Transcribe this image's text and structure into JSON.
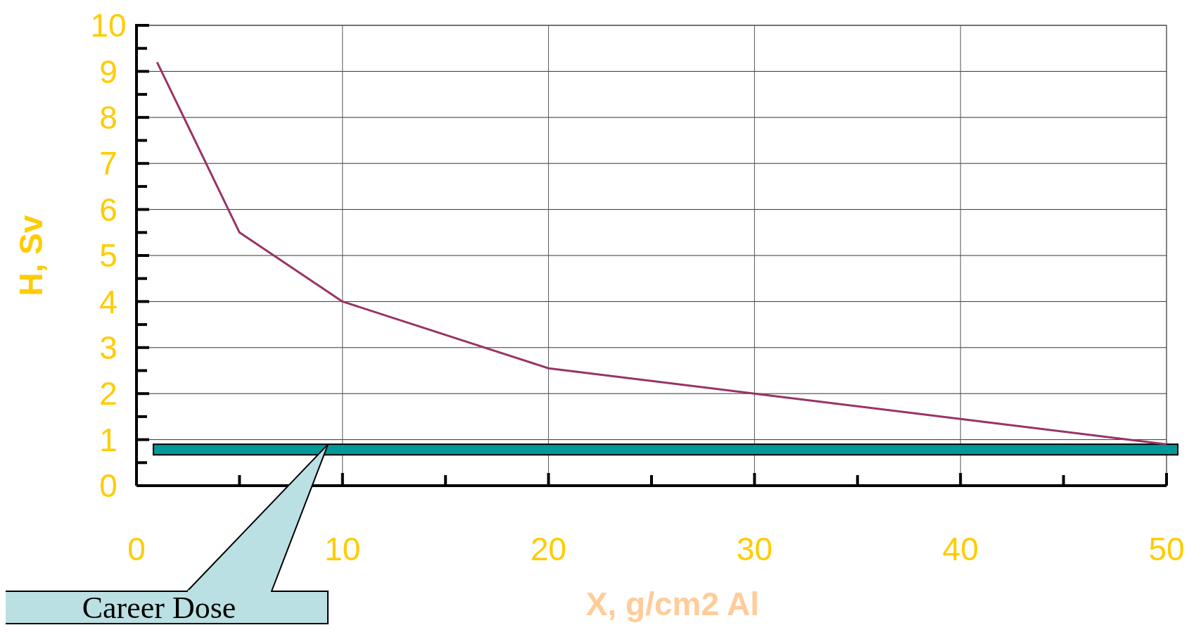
{
  "chart_data": {
    "type": "line",
    "xlabel": "X, g/cm2 Al",
    "ylabel": "H, Sv",
    "x": [
      1,
      5,
      10,
      20,
      30,
      40,
      50
    ],
    "series": [
      {
        "color": "#993366",
        "values": [
          9.2,
          5.5,
          4.0,
          2.55,
          2.0,
          1.45,
          0.9
        ]
      }
    ],
    "xlim": [
      0,
      50
    ],
    "ylim": [
      0,
      10
    ],
    "xticks": [
      0,
      {
        "value": 5,
        "label": null
      },
      10,
      {
        "value": 15,
        "label": null
      },
      20,
      {
        "value": 25,
        "label": null
      },
      30,
      {
        "value": 35,
        "label": null
      },
      40,
      {
        "value": 45,
        "label": null
      },
      50
    ],
    "yticks": [
      0,
      {
        "value": 0.5,
        "label": null
      },
      1,
      {
        "value": 1.5,
        "label": null
      },
      2,
      {
        "value": 2.5,
        "label": null
      },
      3,
      {
        "value": 3.5,
        "label": null
      },
      4,
      {
        "value": 4.5,
        "label": null
      },
      5,
      {
        "value": 5.5,
        "label": null
      },
      6,
      {
        "value": 6.5,
        "label": null
      },
      7,
      {
        "value": 7.5,
        "label": null
      },
      8,
      {
        "value": 8.5,
        "label": null
      },
      9,
      {
        "value": 9.5,
        "label": null
      },
      10
    ],
    "bands": [
      {
        "axis": "y",
        "from": 0.67,
        "to": 0.9,
        "label": "Career Dose",
        "color": "#009999"
      }
    ],
    "grid": true,
    "marker": "none",
    "line_style": "solid"
  }
}
